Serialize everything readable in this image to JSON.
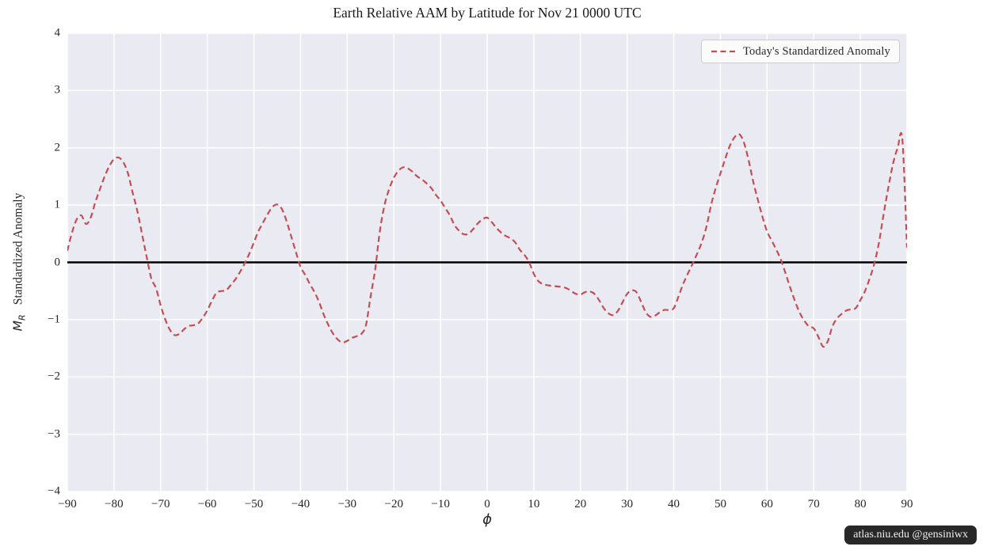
{
  "title": "Earth Relative AAM by Latitude for Nov 21 0000 UTC",
  "legend": {
    "label": "Today's Standardized Anomaly"
  },
  "watermark": {
    "text": "atlas.niu.edu  @gensiniwx"
  },
  "axes": {
    "x_label": "ϕ",
    "y_label_symbol": "M",
    "y_label_subscript": "R",
    "y_label_text": "Standardized Anomaly",
    "x_tick_values": [
      -90,
      -80,
      -70,
      -60,
      -50,
      -40,
      -30,
      -20,
      -10,
      0,
      10,
      20,
      30,
      40,
      50,
      60,
      70,
      80,
      90
    ],
    "x_tick_labels": [
      "−90",
      "−80",
      "−70",
      "−60",
      "−50",
      "−40",
      "−30",
      "−20",
      "−10",
      "0",
      "10",
      "20",
      "30",
      "40",
      "50",
      "60",
      "70",
      "80",
      "90"
    ],
    "y_tick_values": [
      -4,
      -3,
      -2,
      -1,
      0,
      1,
      2,
      3,
      4
    ],
    "y_tick_labels": [
      "−4",
      "−3",
      "−2",
      "−1",
      "0",
      "1",
      "2",
      "3",
      "4"
    ]
  },
  "colors": {
    "plot_background": "#eaeaf2",
    "grid": "#ffffff",
    "zero_line": "#000000",
    "series": "#c44e52",
    "text": "#262626"
  },
  "chart_data": {
    "type": "line",
    "title": "Earth Relative AAM by Latitude for Nov 21 0000 UTC",
    "xlabel": "phi (latitude, degrees)",
    "ylabel": "M_R Standardized Anomaly",
    "xlim": [
      -90,
      90
    ],
    "ylim": [
      -4,
      4
    ],
    "grid": true,
    "legend_position": "upper right",
    "zero_line": 0,
    "series": [
      {
        "name": "Today's Standardized Anomaly",
        "style": "dashed",
        "color": "#c44e52",
        "phi_start": -90,
        "phi_step": 1,
        "values": [
          0.2,
          0.52,
          0.75,
          0.82,
          0.67,
          0.78,
          1.05,
          1.28,
          1.5,
          1.68,
          1.8,
          1.83,
          1.75,
          1.55,
          1.22,
          0.9,
          0.5,
          0.1,
          -0.28,
          -0.45,
          -0.75,
          -1.0,
          -1.18,
          -1.27,
          -1.25,
          -1.17,
          -1.11,
          -1.1,
          -1.07,
          -0.97,
          -0.84,
          -0.67,
          -0.53,
          -0.5,
          -0.49,
          -0.4,
          -0.3,
          -0.17,
          -0.02,
          0.15,
          0.35,
          0.55,
          0.7,
          0.85,
          0.97,
          1.01,
          0.93,
          0.72,
          0.45,
          0.18,
          -0.08,
          -0.22,
          -0.38,
          -0.52,
          -0.7,
          -0.92,
          -1.1,
          -1.25,
          -1.35,
          -1.4,
          -1.37,
          -1.32,
          -1.29,
          -1.25,
          -1.1,
          -0.6,
          -0.12,
          0.55,
          1.0,
          1.28,
          1.48,
          1.6,
          1.66,
          1.64,
          1.58,
          1.5,
          1.45,
          1.38,
          1.3,
          1.18,
          1.08,
          0.95,
          0.82,
          0.65,
          0.55,
          0.49,
          0.5,
          0.58,
          0.68,
          0.75,
          0.78,
          0.7,
          0.6,
          0.52,
          0.46,
          0.42,
          0.35,
          0.22,
          0.13,
          0.0,
          -0.2,
          -0.33,
          -0.38,
          -0.4,
          -0.41,
          -0.42,
          -0.43,
          -0.45,
          -0.5,
          -0.55,
          -0.56,
          -0.52,
          -0.51,
          -0.55,
          -0.66,
          -0.8,
          -0.89,
          -0.92,
          -0.85,
          -0.7,
          -0.55,
          -0.49,
          -0.52,
          -0.69,
          -0.87,
          -0.95,
          -0.93,
          -0.87,
          -0.83,
          -0.83,
          -0.8,
          -0.6,
          -0.38,
          -0.2,
          -0.03,
          0.15,
          0.35,
          0.62,
          1.0,
          1.3,
          1.55,
          1.8,
          2.03,
          2.18,
          2.24,
          2.1,
          1.8,
          1.42,
          1.1,
          0.8,
          0.54,
          0.38,
          0.22,
          0.04,
          -0.2,
          -0.45,
          -0.68,
          -0.88,
          -1.02,
          -1.12,
          -1.15,
          -1.3,
          -1.47,
          -1.38,
          -1.12,
          -0.98,
          -0.9,
          -0.84,
          -0.82,
          -0.8,
          -0.66,
          -0.5,
          -0.28,
          -0.02,
          0.35,
          0.85,
          1.3,
          1.72,
          2.0,
          2.15,
          0.26
        ]
      }
    ]
  }
}
